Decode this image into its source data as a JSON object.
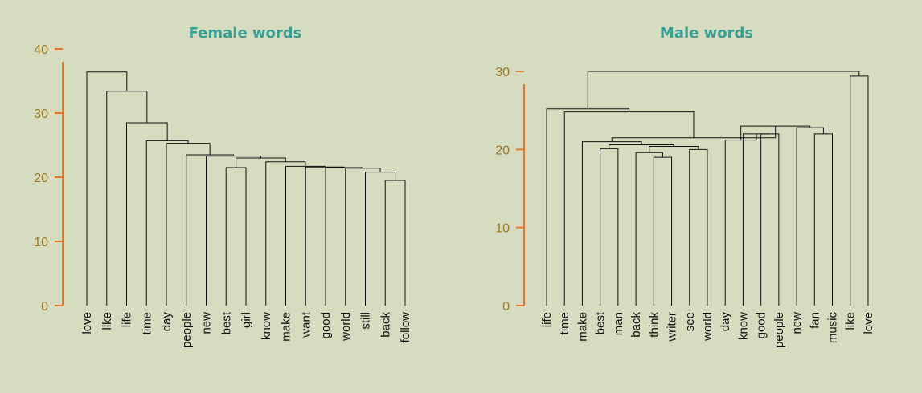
{
  "chart_data": [
    {
      "type": "dendrogram",
      "title": "Female words",
      "ylim": [
        0,
        40
      ],
      "yticks": [
        0,
        10,
        20,
        30,
        40
      ],
      "leaves": [
        "love",
        "like",
        "life",
        "time",
        "day",
        "people",
        "new",
        "best",
        "girl",
        "know",
        "make",
        "want",
        "good",
        "world",
        "still",
        "back",
        "follow"
      ],
      "merges": [
        {
          "a": "best",
          "b": "girl",
          "height": 21.5
        },
        {
          "a": "back",
          "b": "follow",
          "height": 19.5
        },
        {
          "a": "still",
          "b": 1,
          "height": 20.8
        },
        {
          "a": "world",
          "b": 2,
          "height": 21.4
        },
        {
          "a": "good",
          "b": 3,
          "height": 21.5
        },
        {
          "a": "want",
          "b": 4,
          "height": 21.6
        },
        {
          "a": "make",
          "b": 5,
          "height": 21.7
        },
        {
          "a": "know",
          "b": 6,
          "height": 22.4
        },
        {
          "a": 0,
          "b": 7,
          "height": 23.0
        },
        {
          "a": "new",
          "b": 8,
          "height": 23.3
        },
        {
          "a": "people",
          "b": 9,
          "height": 23.5
        },
        {
          "a": "day",
          "b": 10,
          "height": 25.3
        },
        {
          "a": "time",
          "b": 11,
          "height": 25.7
        },
        {
          "a": "life",
          "b": 12,
          "height": 28.5
        },
        {
          "a": "like",
          "b": 13,
          "height": 33.4
        },
        {
          "a": "love",
          "b": 14,
          "height": 36.4
        }
      ]
    },
    {
      "type": "dendrogram",
      "title": "Male words",
      "ylim": [
        0,
        30
      ],
      "yticks": [
        0,
        10,
        20,
        30
      ],
      "leaves": [
        "life",
        "time",
        "make",
        "best",
        "man",
        "back",
        "think",
        "writer",
        "see",
        "world",
        "day",
        "know",
        "good",
        "people",
        "new",
        "fan",
        "music",
        "like",
        "love"
      ],
      "merges": [
        {
          "a": "writer",
          "b": "think",
          "height": 19.0
        },
        {
          "a": "back",
          "b": 0,
          "height": 19.6
        },
        {
          "a": "see",
          "b": "world",
          "height": 20.0
        },
        {
          "a": 1,
          "b": 2,
          "height": 20.4
        },
        {
          "a": "best",
          "b": "man",
          "height": 20.1
        },
        {
          "a": 4,
          "b": 3,
          "height": 20.6
        },
        {
          "a": "make",
          "b": 5,
          "height": 21.0
        },
        {
          "a": "good",
          "b": "people",
          "height": 22.0
        },
        {
          "a": "know",
          "b": 7,
          "height": 22.0
        },
        {
          "a": "day",
          "b": 8,
          "height": 21.2
        },
        {
          "a": "fan",
          "b": "music",
          "height": 22.0
        },
        {
          "a": "new",
          "b": 10,
          "height": 22.8
        },
        {
          "a": 9,
          "b": 11,
          "height": 23.0
        },
        {
          "a": 6,
          "b": 12,
          "height": 21.5
        },
        {
          "a": "time",
          "b": 13,
          "height": 24.8
        },
        {
          "a": "life",
          "b": 14,
          "height": 25.2
        },
        {
          "a": "like",
          "b": "love",
          "height": 29.4
        },
        {
          "a": 15,
          "b": 16,
          "height": 30.0
        }
      ]
    }
  ]
}
